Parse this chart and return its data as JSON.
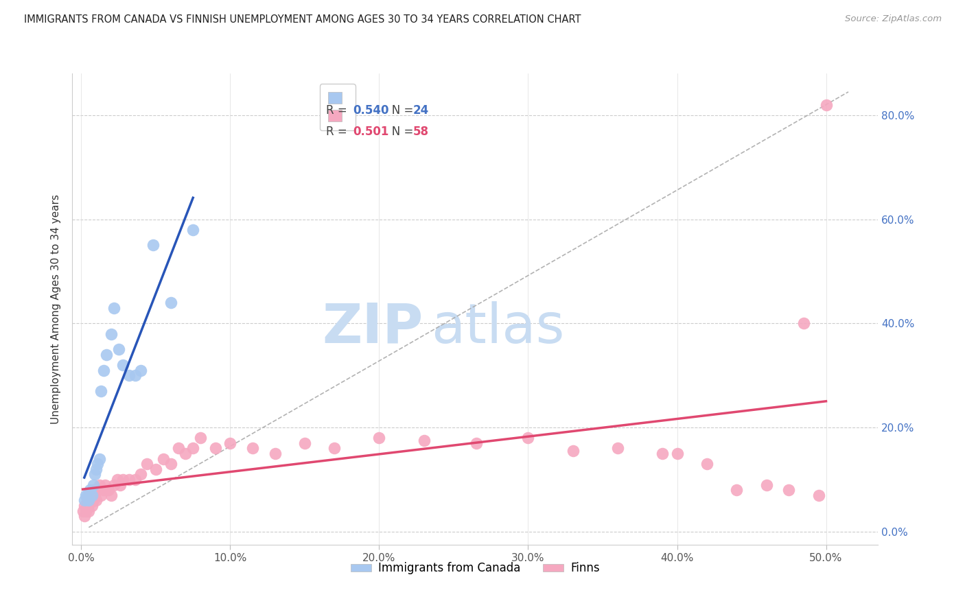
{
  "title": "IMMIGRANTS FROM CANADA VS FINNISH UNEMPLOYMENT AMONG AGES 30 TO 34 YEARS CORRELATION CHART",
  "source": "Source: ZipAtlas.com",
  "ylabel": "Unemployment Among Ages 30 to 34 years",
  "x_ticks": [
    0.0,
    0.1,
    0.2,
    0.3,
    0.4,
    0.5
  ],
  "x_tick_labels": [
    "0.0%",
    "10.0%",
    "20.0%",
    "30.0%",
    "40.0%",
    "50.0%"
  ],
  "y_ticks": [
    0.0,
    0.2,
    0.4,
    0.6,
    0.8
  ],
  "y_tick_labels": [
    "0.0%",
    "20.0%",
    "40.0%",
    "60.0%",
    "80.0%"
  ],
  "xlim": [
    -0.006,
    0.535
  ],
  "ylim": [
    -0.025,
    0.88
  ],
  "legend_blue_label": "Immigrants from Canada",
  "legend_pink_label": "Finns",
  "legend_r_blue": "R = ",
  "legend_r_blue_val": "0.540",
  "legend_n_blue": "N = ",
  "legend_n_blue_val": "24",
  "legend_r_pink": "R = ",
  "legend_r_pink_val": "0.501",
  "legend_n_pink": "N = ",
  "legend_n_pink_val": "58",
  "blue_color": "#A8C8F0",
  "pink_color": "#F5A8C0",
  "trend_blue_color": "#2855B8",
  "trend_pink_color": "#E04870",
  "trend_dash_color": "#AAAAAA",
  "watermark_zip": "ZIP",
  "watermark_atlas": "atlas",
  "watermark_color": "#C8DCF2",
  "canada_x": [
    0.002,
    0.003,
    0.004,
    0.005,
    0.006,
    0.007,
    0.008,
    0.009,
    0.01,
    0.011,
    0.012,
    0.013,
    0.015,
    0.017,
    0.02,
    0.022,
    0.025,
    0.028,
    0.032,
    0.036,
    0.04,
    0.048,
    0.06,
    0.075
  ],
  "canada_y": [
    0.06,
    0.07,
    0.07,
    0.06,
    0.08,
    0.07,
    0.09,
    0.11,
    0.12,
    0.13,
    0.14,
    0.27,
    0.31,
    0.34,
    0.38,
    0.43,
    0.35,
    0.32,
    0.3,
    0.3,
    0.31,
    0.55,
    0.44,
    0.58
  ],
  "finns_x": [
    0.001,
    0.002,
    0.002,
    0.003,
    0.004,
    0.004,
    0.005,
    0.005,
    0.006,
    0.007,
    0.007,
    0.008,
    0.008,
    0.009,
    0.01,
    0.011,
    0.012,
    0.013,
    0.015,
    0.016,
    0.018,
    0.02,
    0.022,
    0.024,
    0.026,
    0.028,
    0.032,
    0.036,
    0.04,
    0.044,
    0.05,
    0.055,
    0.06,
    0.065,
    0.07,
    0.075,
    0.08,
    0.09,
    0.1,
    0.115,
    0.13,
    0.15,
    0.17,
    0.2,
    0.23,
    0.265,
    0.3,
    0.33,
    0.36,
    0.39,
    0.4,
    0.42,
    0.44,
    0.46,
    0.475,
    0.485,
    0.495,
    0.5
  ],
  "finns_y": [
    0.04,
    0.03,
    0.05,
    0.04,
    0.05,
    0.065,
    0.04,
    0.07,
    0.055,
    0.05,
    0.07,
    0.06,
    0.08,
    0.07,
    0.06,
    0.08,
    0.09,
    0.07,
    0.08,
    0.09,
    0.08,
    0.07,
    0.09,
    0.1,
    0.09,
    0.1,
    0.1,
    0.1,
    0.11,
    0.13,
    0.12,
    0.14,
    0.13,
    0.16,
    0.15,
    0.16,
    0.18,
    0.16,
    0.17,
    0.16,
    0.15,
    0.17,
    0.16,
    0.18,
    0.175,
    0.17,
    0.18,
    0.155,
    0.16,
    0.15,
    0.15,
    0.13,
    0.08,
    0.09,
    0.08,
    0.4,
    0.07,
    0.82
  ]
}
